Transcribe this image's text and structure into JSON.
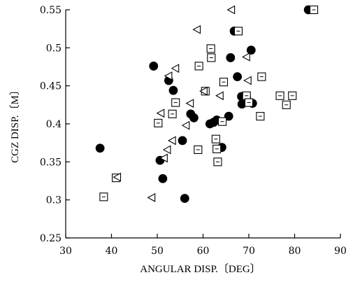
{
  "chart_data": {
    "type": "scatter",
    "title": "",
    "xlabel": "ANGULAR DISP.〔DEG〕",
    "ylabel": "CGZ DISP.〔M〕",
    "xlim": [
      30,
      90
    ],
    "ylim": [
      0.25,
      0.55
    ],
    "x_ticks": [
      "30",
      "40",
      "50",
      "60",
      "70",
      "80",
      "90"
    ],
    "y_ticks": [
      "0.25",
      "0.3",
      "0.35",
      "0.4",
      "0.45",
      "0.5",
      "0.55"
    ],
    "grid": false,
    "series": [
      {
        "marker": "filled-circle",
        "points": [
          [
            37.5,
            0.368
          ],
          [
            49.2,
            0.476
          ],
          [
            50.6,
            0.352
          ],
          [
            51.2,
            0.328
          ],
          [
            52.5,
            0.457
          ],
          [
            53.5,
            0.444
          ],
          [
            55.5,
            0.378
          ],
          [
            56.0,
            0.302
          ],
          [
            57.3,
            0.413
          ],
          [
            58.0,
            0.408
          ],
          [
            61.5,
            0.4
          ],
          [
            62.3,
            0.402
          ],
          [
            63.0,
            0.405
          ],
          [
            64.1,
            0.369
          ],
          [
            65.6,
            0.41
          ],
          [
            66.0,
            0.487
          ],
          [
            66.8,
            0.522
          ],
          [
            67.5,
            0.462
          ],
          [
            68.4,
            0.436
          ],
          [
            68.5,
            0.426
          ],
          [
            69.5,
            0.435
          ],
          [
            70.5,
            0.497
          ],
          [
            70.8,
            0.427
          ],
          [
            83.0,
            0.55
          ]
        ]
      },
      {
        "marker": "open-square",
        "points": [
          [
            38.3,
            0.304
          ],
          [
            41.0,
            0.329
          ],
          [
            50.2,
            0.401
          ],
          [
            53.3,
            0.413
          ],
          [
            54.0,
            0.428
          ],
          [
            58.9,
            0.366
          ],
          [
            59.1,
            0.476
          ],
          [
            60.5,
            0.443
          ],
          [
            61.7,
            0.499
          ],
          [
            61.8,
            0.487
          ],
          [
            62.8,
            0.38
          ],
          [
            63.0,
            0.367
          ],
          [
            63.2,
            0.35
          ],
          [
            64.2,
            0.403
          ],
          [
            64.5,
            0.455
          ],
          [
            67.7,
            0.522
          ],
          [
            69.5,
            0.437
          ],
          [
            70.0,
            0.428
          ],
          [
            72.5,
            0.41
          ],
          [
            72.8,
            0.462
          ],
          [
            76.8,
            0.437
          ],
          [
            78.2,
            0.425
          ],
          [
            79.5,
            0.437
          ],
          [
            84.2,
            0.55
          ]
        ]
      },
      {
        "marker": "open-left-triangle",
        "points": [
          [
            41.3,
            0.33
          ],
          [
            48.8,
            0.303
          ],
          [
            50.8,
            0.414
          ],
          [
            51.5,
            0.355
          ],
          [
            52.2,
            0.366
          ],
          [
            52.5,
            0.463
          ],
          [
            53.3,
            0.378
          ],
          [
            54.0,
            0.473
          ],
          [
            56.3,
            0.398
          ],
          [
            57.2,
            0.427
          ],
          [
            58.7,
            0.524
          ],
          [
            60.2,
            0.443
          ],
          [
            63.7,
            0.437
          ],
          [
            66.2,
            0.55
          ],
          [
            69.5,
            0.488
          ],
          [
            69.8,
            0.457
          ]
        ]
      }
    ]
  }
}
